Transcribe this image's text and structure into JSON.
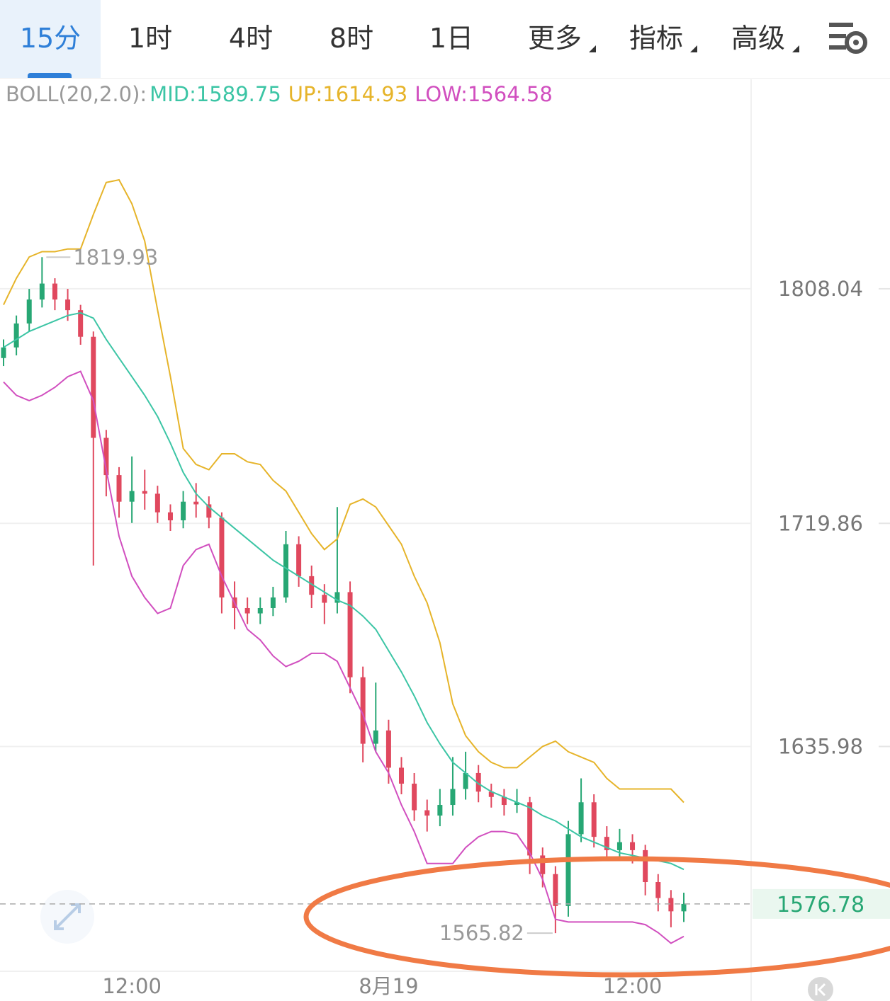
{
  "tabs": [
    "15分",
    "1时",
    "4时",
    "8时",
    "1日",
    "更多",
    "指标",
    "高级"
  ],
  "chart_data": {
    "type": "candlestick",
    "indicator": "BOLL(20,2.0):",
    "categories": [
      null,
      null,
      null,
      null,
      null,
      null,
      null,
      null,
      null,
      null,
      "12:00",
      null,
      null,
      null,
      null,
      null,
      null,
      null,
      null,
      null,
      null,
      null,
      null,
      null,
      null,
      null,
      null,
      null,
      null,
      null,
      "8月19",
      null,
      null,
      null,
      null,
      null,
      null,
      null,
      null,
      null,
      null,
      null,
      null,
      null,
      null,
      null,
      null,
      null,
      null,
      "12:00",
      null,
      null,
      null,
      null
    ],
    "open": [
      1782,
      1786,
      1795,
      1804,
      1810,
      1804,
      1800,
      1790,
      1752,
      1738,
      1728,
      1732,
      1731,
      1724,
      1721,
      1728,
      1727,
      1722,
      1692,
      1688,
      1686,
      1688,
      1692,
      1712,
      1700,
      1693,
      1690,
      1694,
      1662,
      1637,
      1642,
      1628,
      1622,
      1612,
      1610,
      1614,
      1620,
      1626,
      1619,
      1617,
      1614,
      1615,
      1595,
      1588,
      1576,
      1603,
      1615,
      1602,
      1597,
      1600,
      1597,
      1585,
      1579,
      1574
    ],
    "high": [
      1789,
      1798,
      1808,
      1819.93,
      1812,
      1808,
      1802,
      1792,
      1755,
      1741,
      1745,
      1740,
      1734,
      1727,
      1732,
      1735,
      1730,
      1724,
      1698,
      1692,
      1692,
      1696,
      1717,
      1715,
      1704,
      1697,
      1726,
      1698,
      1666,
      1660,
      1646,
      1632,
      1626,
      1616,
      1620,
      1632,
      1634,
      1629,
      1622,
      1620,
      1620,
      1617,
      1598,
      1591,
      1608,
      1624,
      1618,
      1606,
      1605,
      1603,
      1599,
      1588,
      1582,
      1581
    ],
    "low": [
      1779,
      1783,
      1792,
      1801,
      1800,
      1796,
      1787,
      1704,
      1730,
      1722,
      1720,
      1725,
      1720,
      1717,
      1718,
      1722,
      1718,
      1686,
      1680,
      1682,
      1682,
      1685,
      1690,
      1696,
      1688,
      1682,
      1686,
      1656,
      1630,
      1634,
      1622,
      1618,
      1608,
      1604,
      1606,
      1610,
      1616,
      1615,
      1613,
      1610,
      1611,
      1588,
      1583,
      1565.82,
      1572,
      1600,
      1598,
      1593,
      1594,
      1592,
      1580,
      1574,
      1568,
      1570
    ],
    "close": [
      1786,
      1795,
      1804,
      1810,
      1804,
      1800,
      1790,
      1752,
      1738,
      1728,
      1732,
      1731,
      1724,
      1721,
      1728,
      1727,
      1722,
      1692,
      1688,
      1686,
      1688,
      1692,
      1712,
      1700,
      1693,
      1690,
      1694,
      1662,
      1637,
      1642,
      1628,
      1622,
      1612,
      1610,
      1614,
      1620,
      1626,
      1619,
      1617,
      1614,
      1615,
      1595,
      1588,
      1576,
      1603,
      1615,
      1602,
      1597,
      1600,
      1597,
      1585,
      1579,
      1574,
      1576.78
    ],
    "up_color": "#27a774",
    "down_color": "#e0485e",
    "series": [
      {
        "name": "MID:1589.75",
        "color": "#3cc5a5",
        "values": [
          1786,
          1789,
          1792,
          1794,
          1796,
          1798,
          1799,
          1797,
          1789,
          1782,
          1775,
          1768,
          1760,
          1750,
          1739,
          1731,
          1726,
          1722,
          1718,
          1714,
          1710,
          1706,
          1703,
          1700,
          1697,
          1694,
          1691,
          1689,
          1685,
          1680,
          1672,
          1664,
          1655,
          1645,
          1637,
          1630,
          1626,
          1622,
          1619,
          1617,
          1615,
          1613,
          1610,
          1608,
          1605,
          1602,
          1600,
          1598,
          1596,
          1595,
          1594,
          1593,
          1592,
          1589.75
        ]
      },
      {
        "name": "UP:1614.93",
        "color": "#e6b42a",
        "values": [
          1802,
          1812,
          1820,
          1822,
          1822,
          1823,
          1823,
          1836,
          1848,
          1849,
          1840,
          1826,
          1800,
          1775,
          1748,
          1742,
          1740,
          1746,
          1746,
          1743,
          1742,
          1736,
          1732,
          1724,
          1716,
          1710,
          1714,
          1727,
          1729,
          1726,
          1719,
          1712,
          1700,
          1690,
          1675,
          1652,
          1640,
          1634,
          1630,
          1628,
          1628,
          1632,
          1636,
          1638,
          1634,
          1632,
          1630,
          1624,
          1620,
          1620,
          1620,
          1620,
          1620,
          1614.93
        ]
      },
      {
        "name": "LOW:1564.58",
        "color": "#d14fbf",
        "values": [
          1773,
          1768,
          1766,
          1768,
          1771,
          1775,
          1777,
          1766,
          1740,
          1715,
          1700,
          1692,
          1686,
          1688,
          1704,
          1710,
          1712,
          1700,
          1690,
          1680,
          1676,
          1670,
          1666,
          1668,
          1671,
          1671,
          1668,
          1658,
          1648,
          1634,
          1626,
          1614,
          1604,
          1592,
          1592,
          1592,
          1598,
          1602,
          1604,
          1604,
          1603,
          1596,
          1586,
          1571,
          1570,
          1570,
          1570,
          1570,
          1570,
          1570,
          1569,
          1566,
          1562,
          1564.58
        ]
      }
    ],
    "ylim": [
      1552,
      1886
    ],
    "yticks": [
      1808.04,
      1719.86,
      1635.98
    ],
    "grid": true
  }
}
